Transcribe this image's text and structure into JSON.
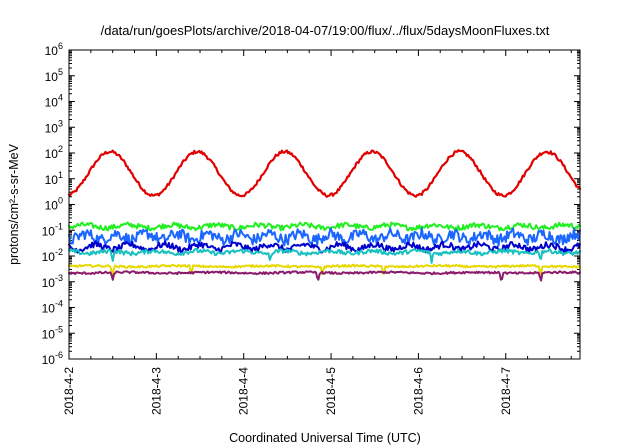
{
  "chart_data": {
    "type": "line",
    "title": "/data/run/goesPlots/archive/2018-04-07/19:00/flux/../flux/5daysMoonFluxes.txt",
    "xlabel": "Coordinated Universal Time (UTC)",
    "ylabel": "protons/cm²-s-sr-MeV",
    "y_scale": "log",
    "ylim_exponents": [
      -6,
      6
    ],
    "y_tick_labels": [
      {
        "base": "10",
        "exp": "6"
      },
      {
        "base": "10",
        "exp": "5"
      },
      {
        "base": "10",
        "exp": "4"
      },
      {
        "base": "10",
        "exp": "3"
      },
      {
        "base": "10",
        "exp": "2"
      },
      {
        "base": "10",
        "exp": "1"
      },
      {
        "base": "10",
        "exp": "0"
      },
      {
        "base": "10",
        "exp": "-1"
      },
      {
        "base": "10",
        "exp": "-2"
      },
      {
        "base": "10",
        "exp": "-3"
      },
      {
        "base": "10",
        "exp": "-4"
      },
      {
        "base": "10",
        "exp": "-5"
      },
      {
        "base": "10",
        "exp": "-6"
      }
    ],
    "x_tick_labels": [
      "2018-4-2",
      "2018-4-3",
      "2018-4-4",
      "2018-4-5",
      "2018-4-6",
      "2018-4-7"
    ],
    "x_range_days": [
      0,
      5.85
    ],
    "grid": false,
    "legend": "none",
    "series": [
      {
        "color": "#e00000",
        "base": 1.2,
        "wave_amp": 0.85,
        "wave_period_days": 1.0,
        "wave_phase": 0.22,
        "noise": 0.06,
        "dips": []
      },
      {
        "color": "#22ee22",
        "base": -0.85,
        "wave_amp": 0.06,
        "wave_period_days": 0.5,
        "wave_phase": 0.1,
        "noise": 0.1,
        "dips": []
      },
      {
        "color": "#1a66ff",
        "base": -1.25,
        "wave_amp": 0.12,
        "wave_period_days": 0.35,
        "wave_phase": 0.3,
        "noise": 0.22,
        "dips": []
      },
      {
        "color": "#0000cc",
        "base": -1.65,
        "wave_amp": 0.1,
        "wave_period_days": 0.4,
        "wave_phase": 0.5,
        "noise": 0.12,
        "dips": []
      },
      {
        "color": "#18c0c0",
        "base": -1.85,
        "wave_amp": 0.05,
        "wave_period_days": 0.5,
        "wave_phase": 0.7,
        "noise": 0.08,
        "dips": [
          0.5,
          2.3,
          4.15,
          5.4
        ]
      },
      {
        "color": "#e6d800",
        "base": -2.4,
        "wave_amp": 0.02,
        "wave_period_days": 1.0,
        "wave_phase": 0.0,
        "noise": 0.04,
        "dips": [
          0.5,
          1.4,
          2.9,
          3.6,
          5.4
        ]
      },
      {
        "color": "#8b1a6b",
        "base": -2.65,
        "wave_amp": 0.02,
        "wave_period_days": 1.0,
        "wave_phase": 0.4,
        "noise": 0.04,
        "dips": [
          0.5,
          2.85,
          4.95,
          5.4
        ]
      }
    ]
  }
}
